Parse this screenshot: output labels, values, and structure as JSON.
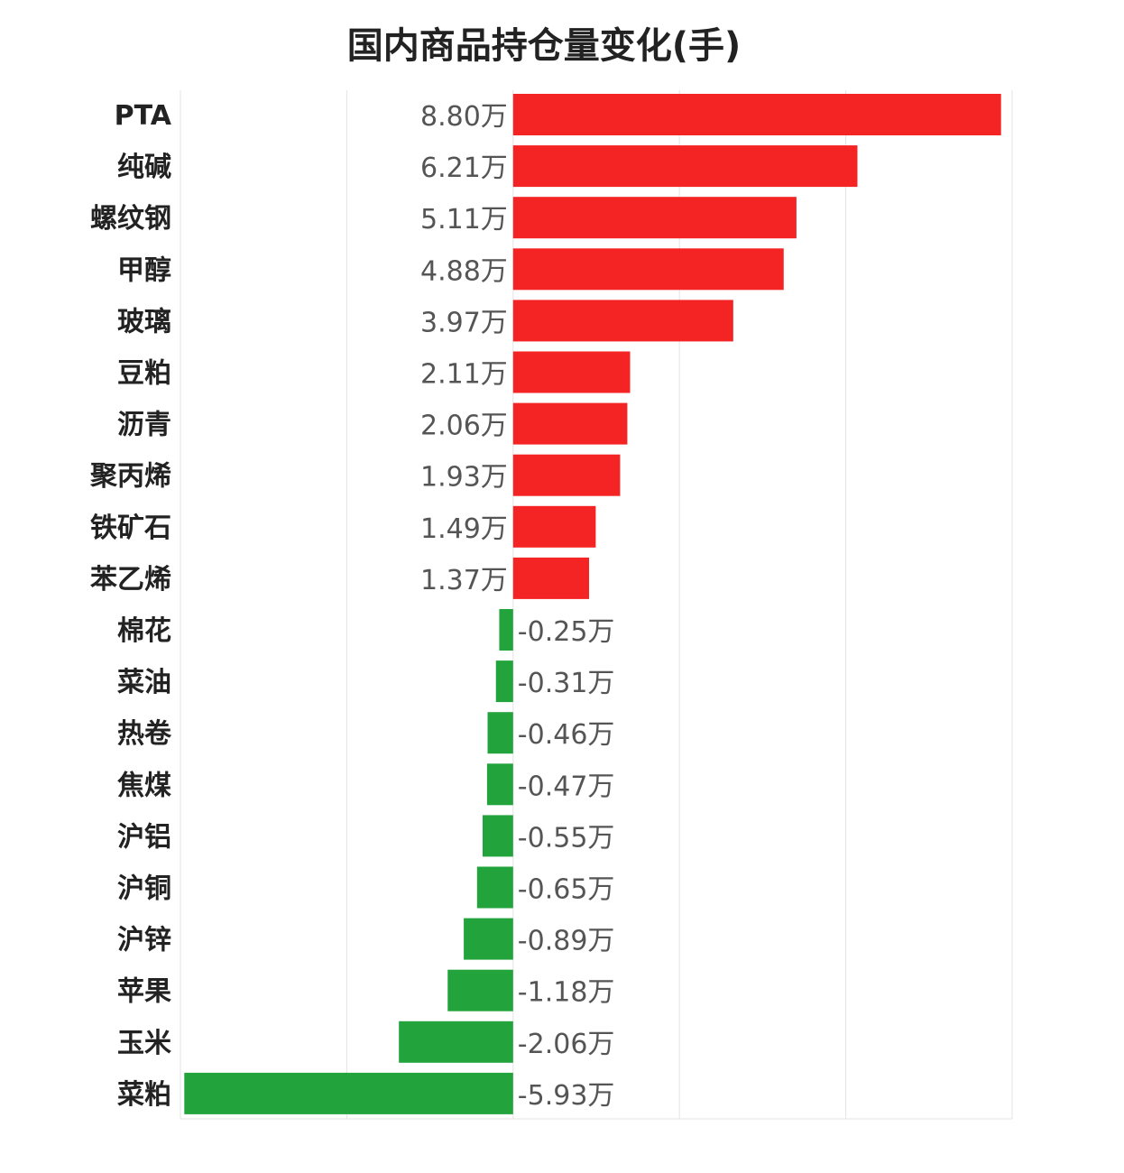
{
  "chart_data": {
    "type": "bar",
    "orientation": "horizontal",
    "title": "国内商品持仓量变化(手)",
    "value_unit": "万",
    "categories": [
      "PTA",
      "纯碱",
      "螺纹钢",
      "甲醇",
      "玻璃",
      "豆粕",
      "沥青",
      "聚丙烯",
      "铁矿石",
      "苯乙烯",
      "棉花",
      "菜油",
      "热卷",
      "焦煤",
      "沪铝",
      "沪铜",
      "沪锌",
      "苹果",
      "玉米",
      "菜粕"
    ],
    "values": [
      8.8,
      6.21,
      5.11,
      4.88,
      3.97,
      2.11,
      2.06,
      1.93,
      1.49,
      1.37,
      -0.25,
      -0.31,
      -0.46,
      -0.47,
      -0.55,
      -0.65,
      -0.89,
      -1.18,
      -2.06,
      -5.93
    ],
    "data_labels": [
      "8.80万",
      "6.21万",
      "5.11万",
      "4.88万",
      "3.97万",
      "2.11万",
      "2.06万",
      "1.93万",
      "1.49万",
      "1.37万",
      "-0.25万",
      "-0.31万",
      "-0.46万",
      "-0.47万",
      "-0.55万",
      "-0.65万",
      "-0.89万",
      "-1.18万",
      "-2.06万",
      "-5.93万"
    ],
    "xlim": [
      -6,
      9
    ],
    "grid": true,
    "legend": "none",
    "colors": {
      "positive": "#f52424",
      "negative": "#23a33c"
    }
  }
}
